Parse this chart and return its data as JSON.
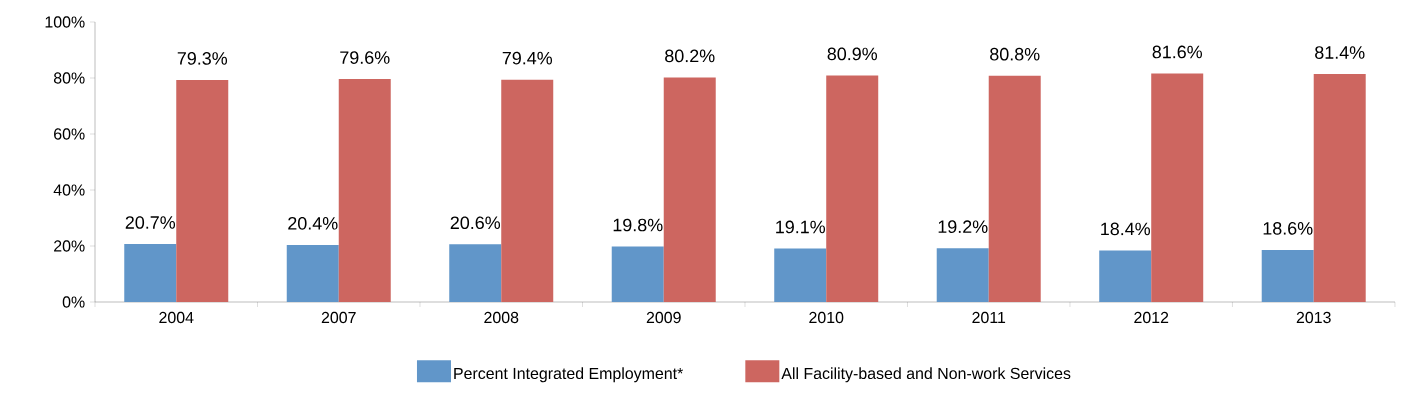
{
  "chart_data": {
    "type": "bar",
    "categories": [
      "2004",
      "2007",
      "2008",
      "2009",
      "2010",
      "2011",
      "2012",
      "2013"
    ],
    "series": [
      {
        "name": "Percent Integrated Employment*",
        "color": "#6196c9",
        "values": [
          20.7,
          20.4,
          20.6,
          19.8,
          19.1,
          19.2,
          18.4,
          18.6
        ],
        "value_labels": [
          "20.7%",
          "20.4%",
          "20.6%",
          "19.8%",
          "19.1%",
          "19.2%",
          "18.4%",
          "18.6%"
        ]
      },
      {
        "name": "All Facility-based and Non-work Services",
        "color": "#cd6660",
        "values": [
          79.3,
          79.6,
          79.4,
          80.2,
          80.9,
          80.8,
          81.6,
          81.4
        ],
        "value_labels": [
          "79.3%",
          "79.6%",
          "79.4%",
          "80.2%",
          "80.9%",
          "80.8%",
          "81.6%",
          "81.4%"
        ]
      }
    ],
    "ylim": [
      0,
      100
    ],
    "yticks": [
      {
        "value": 0,
        "label": "0%"
      },
      {
        "value": 20,
        "label": "20%"
      },
      {
        "value": 40,
        "label": "40%"
      },
      {
        "value": 60,
        "label": "60%"
      },
      {
        "value": 80,
        "label": "80%"
      },
      {
        "value": 100,
        "label": "100%"
      }
    ],
    "legend": "bottom",
    "grid": false
  }
}
